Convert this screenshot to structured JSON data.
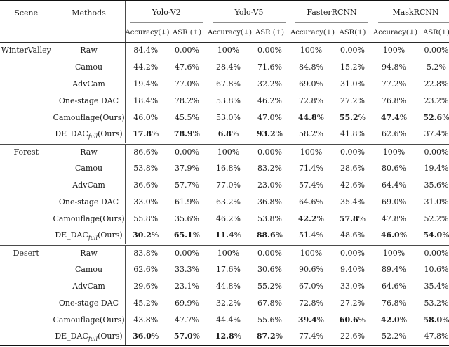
{
  "page": {
    "background": "#ffffff",
    "text_color": "#1c1c1c",
    "rule_color": "#111111",
    "cmidrule_color": "#8d8d8d"
  },
  "table": {
    "header": {
      "scene_label": "Scene",
      "methods_label": "Methods",
      "groups": [
        {
          "label": "Yolo-V2",
          "sub": [
            "Accuracy(↓)",
            "ASR (↑)"
          ]
        },
        {
          "label": "Yolo-V5",
          "sub": [
            "Accuracy(↓)",
            "ASR (↑)"
          ]
        },
        {
          "label": "FasterRCNN",
          "sub": [
            "Accuracy(↓)",
            "ASR(↑)"
          ]
        },
        {
          "label": "MaskRCNN",
          "sub": [
            "Accuracy(↓)",
            "ASR(↑)"
          ]
        }
      ]
    },
    "sections": [
      {
        "scene": "WinterValley",
        "rows": [
          {
            "method": "Raw",
            "values": [
              "84.4%",
              "0.00%",
              "100%",
              "0.00%",
              "100%",
              "0.00%",
              "100%",
              "0.00%"
            ],
            "bold": [
              0,
              0,
              0,
              0,
              0,
              0,
              0,
              0
            ]
          },
          {
            "method": "Camou",
            "values": [
              "44.2%",
              "47.6%",
              "28.4%",
              "71.6%",
              "84.8%",
              "15.2%",
              "94.8%",
              "5.2%"
            ],
            "bold": [
              0,
              0,
              0,
              0,
              0,
              0,
              0,
              0
            ]
          },
          {
            "method": "AdvCam",
            "values": [
              "19.4%",
              "77.0%",
              "67.8%",
              "32.2%",
              "69.0%",
              "31.0%",
              "77.2%",
              "22.8%"
            ],
            "bold": [
              0,
              0,
              0,
              0,
              0,
              0,
              0,
              0
            ]
          },
          {
            "method": "One-stage DAC",
            "values": [
              "18.4%",
              "78.2%",
              "53.8%",
              "46.2%",
              "72.8%",
              "27.2%",
              "76.8%",
              "23.2%"
            ],
            "bold": [
              0,
              0,
              0,
              0,
              0,
              0,
              0,
              0
            ]
          },
          {
            "method": "Camouflage(Ours)",
            "values": [
              "46.0%",
              "45.5%",
              "53.0%",
              "47.0%",
              "44.8%",
              "55.2%",
              "47.4%",
              "52.6%"
            ],
            "bold": [
              0,
              0,
              0,
              0,
              1,
              1,
              1,
              1
            ]
          },
          {
            "method": "DE_DAC",
            "method_sub": "full",
            "method_suffix": "(Ours)",
            "values": [
              "17.8%",
              "78.9%",
              "6.8%",
              "93.2%",
              "58.2%",
              "41.8%",
              "62.6%",
              "37.4%"
            ],
            "bold": [
              1,
              1,
              1,
              1,
              0,
              0,
              0,
              0
            ]
          }
        ]
      },
      {
        "scene": "Forest",
        "rows": [
          {
            "method": "Raw",
            "values": [
              "86.6%",
              "0.00%",
              "100%",
              "0.00%",
              "100%",
              "0.00%",
              "100%",
              "0.00%"
            ],
            "bold": [
              0,
              0,
              0,
              0,
              0,
              0,
              0,
              0
            ]
          },
          {
            "method": "Camou",
            "values": [
              "53.8%",
              "37.9%",
              "16.8%",
              "83.2%",
              "71.4%",
              "28.6%",
              "80.6%",
              "19.4%"
            ],
            "bold": [
              0,
              0,
              0,
              0,
              0,
              0,
              0,
              0
            ]
          },
          {
            "method": "AdvCam",
            "values": [
              "36.6%",
              "57.7%",
              "77.0%",
              "23.0%",
              "57.4%",
              "42.6%",
              "64.4%",
              "35.6%"
            ],
            "bold": [
              0,
              0,
              0,
              0,
              0,
              0,
              0,
              0
            ]
          },
          {
            "method": "One-stage DAC",
            "values": [
              "33.0%",
              "61.9%",
              "63.2%",
              "36.8%",
              "64.6%",
              "35.4%",
              "69.0%",
              "31.0%"
            ],
            "bold": [
              0,
              0,
              0,
              0,
              0,
              0,
              0,
              0
            ]
          },
          {
            "method": "Camouflage(Ours)",
            "values": [
              "55.8%",
              "35.6%",
              "46.2%",
              "53.8%",
              "42.2%",
              "57.8%",
              "47.8%",
              "52.2%"
            ],
            "bold": [
              0,
              0,
              0,
              0,
              1,
              1,
              0,
              0
            ]
          },
          {
            "method": "DE_DAC",
            "method_sub": "full",
            "method_suffix": "(Ours)",
            "values": [
              "30.2%",
              "65.1%",
              "11.4%",
              "88.6%",
              "51.4%",
              "48.6%",
              "46.0%",
              "54.0%"
            ],
            "bold": [
              1,
              1,
              1,
              1,
              0,
              0,
              1,
              1
            ]
          }
        ]
      },
      {
        "scene": "Desert",
        "rows": [
          {
            "method": "Raw",
            "values": [
              "83.8%",
              "0.00%",
              "100%",
              "0.00%",
              "100%",
              "0.00%",
              "100%",
              "0.00%"
            ],
            "bold": [
              0,
              0,
              0,
              0,
              0,
              0,
              0,
              0
            ]
          },
          {
            "method": "Camou",
            "values": [
              "62.6%",
              "33.3%",
              "17.6%",
              "30.6%",
              "90.6%",
              "9.40%",
              "89.4%",
              "10.6%"
            ],
            "bold": [
              0,
              0,
              0,
              0,
              0,
              0,
              0,
              0
            ]
          },
          {
            "method": "AdvCam",
            "values": [
              "29.6%",
              "23.1%",
              "44.8%",
              "55.2%",
              "67.0%",
              "33.0%",
              "64.6%",
              "35.4%"
            ],
            "bold": [
              0,
              0,
              0,
              0,
              0,
              0,
              0,
              0
            ]
          },
          {
            "method": "One-stage DAC",
            "values": [
              "45.2%",
              "69.9%",
              "32.2%",
              "67.8%",
              "72.8%",
              "27.2%",
              "76.8%",
              "53.2%"
            ],
            "bold": [
              0,
              0,
              0,
              0,
              0,
              0,
              0,
              0
            ]
          },
          {
            "method": "Camouflage(Ours)",
            "values": [
              "43.8%",
              "47.7%",
              "44.4%",
              "55.6%",
              "39.4%",
              "60.6%",
              "42.0%",
              "58.0%"
            ],
            "bold": [
              0,
              0,
              0,
              0,
              1,
              1,
              1,
              1
            ]
          },
          {
            "method": "DE_DAC",
            "method_sub": "full",
            "method_suffix": "(Ours)",
            "values": [
              "36.0%",
              "57.0%",
              "12.8%",
              "87.2%",
              "77.4%",
              "22.6%",
              "52.2%",
              "47.8%"
            ],
            "bold": [
              1,
              1,
              1,
              1,
              0,
              0,
              0,
              0
            ]
          }
        ]
      }
    ]
  }
}
